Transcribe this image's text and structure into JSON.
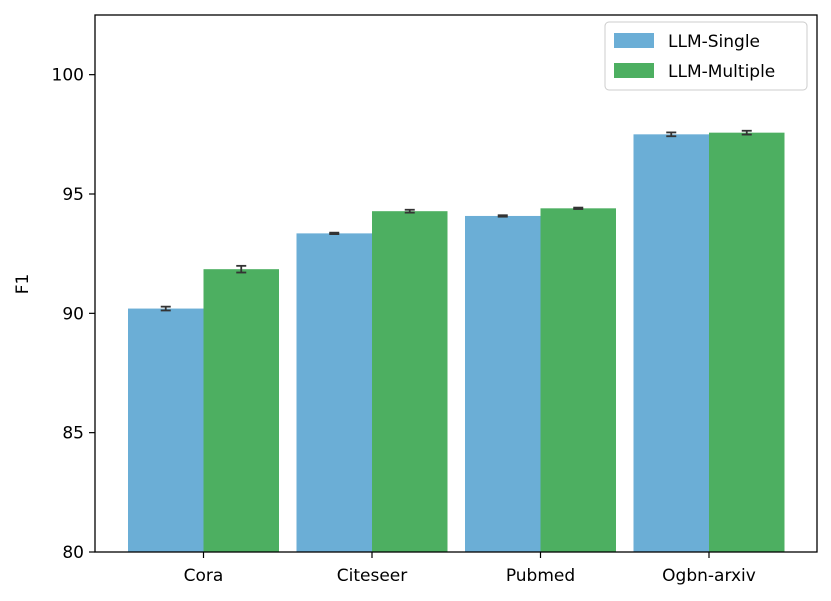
{
  "chart_data": {
    "type": "bar",
    "title": "",
    "xlabel": "",
    "ylabel": "F1",
    "ylim": [
      80,
      102.5
    ],
    "yticks": [
      80,
      85,
      90,
      95,
      100
    ],
    "categories": [
      "Cora",
      "Citeseer",
      "Pubmed",
      "Ogbn-arxiv"
    ],
    "series": [
      {
        "name": "LLM-Single",
        "color": "#6baed6",
        "values": [
          90.2,
          93.35,
          94.08,
          97.5
        ],
        "errors": [
          0.08,
          0.03,
          0.03,
          0.08
        ]
      },
      {
        "name": "LLM-Multiple",
        "color": "#4daf61",
        "values": [
          91.85,
          94.28,
          94.4,
          97.57
        ],
        "errors": [
          0.14,
          0.06,
          0.03,
          0.08
        ]
      }
    ],
    "grid": false,
    "legend_position": "top-right"
  }
}
